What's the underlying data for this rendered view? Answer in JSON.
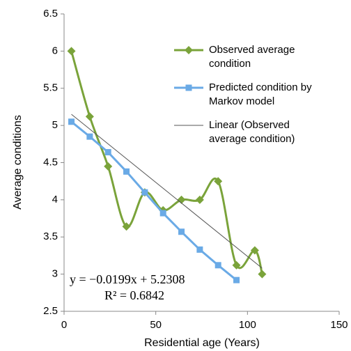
{
  "chart_data": {
    "type": "line",
    "x_label": "Residential age (Years)",
    "y_label": "Average conditions",
    "xlim": [
      0,
      150
    ],
    "xticks": [
      0,
      50,
      100,
      150
    ],
    "ylim": [
      2.5,
      6.5
    ],
    "yticks": [
      2.5,
      3,
      3.5,
      4,
      4.5,
      5,
      5.5,
      6,
      6.5
    ],
    "grid": false,
    "legend": "right",
    "series": [
      {
        "name": "Observed average condition",
        "color": "#7aa33a",
        "marker": "diamond",
        "smooth": true,
        "x": [
          4,
          14,
          24,
          34,
          44,
          54,
          64,
          74,
          84,
          94,
          104,
          108
        ],
        "values": [
          6.0,
          5.12,
          4.45,
          3.64,
          4.1,
          3.86,
          4.0,
          4.0,
          4.25,
          3.12,
          3.32,
          3.0
        ]
      },
      {
        "name": "Predicted condition by Markov model",
        "color": "#6aaae6",
        "marker": "square",
        "smooth": false,
        "x": [
          4,
          14,
          24,
          34,
          44,
          54,
          64,
          74,
          84,
          94
        ],
        "values": [
          5.05,
          4.85,
          4.64,
          4.38,
          4.1,
          3.82,
          3.57,
          3.33,
          3.12,
          2.92
        ]
      },
      {
        "name": "Linear (Observed average condition)",
        "color": "#555555",
        "marker": "none",
        "smooth": false,
        "x": [
          4,
          108
        ],
        "values": [
          5.15,
          3.08
        ]
      }
    ],
    "annotations": [
      "y = −0.0199x + 5.2308",
      "R² = 0.6842"
    ]
  }
}
